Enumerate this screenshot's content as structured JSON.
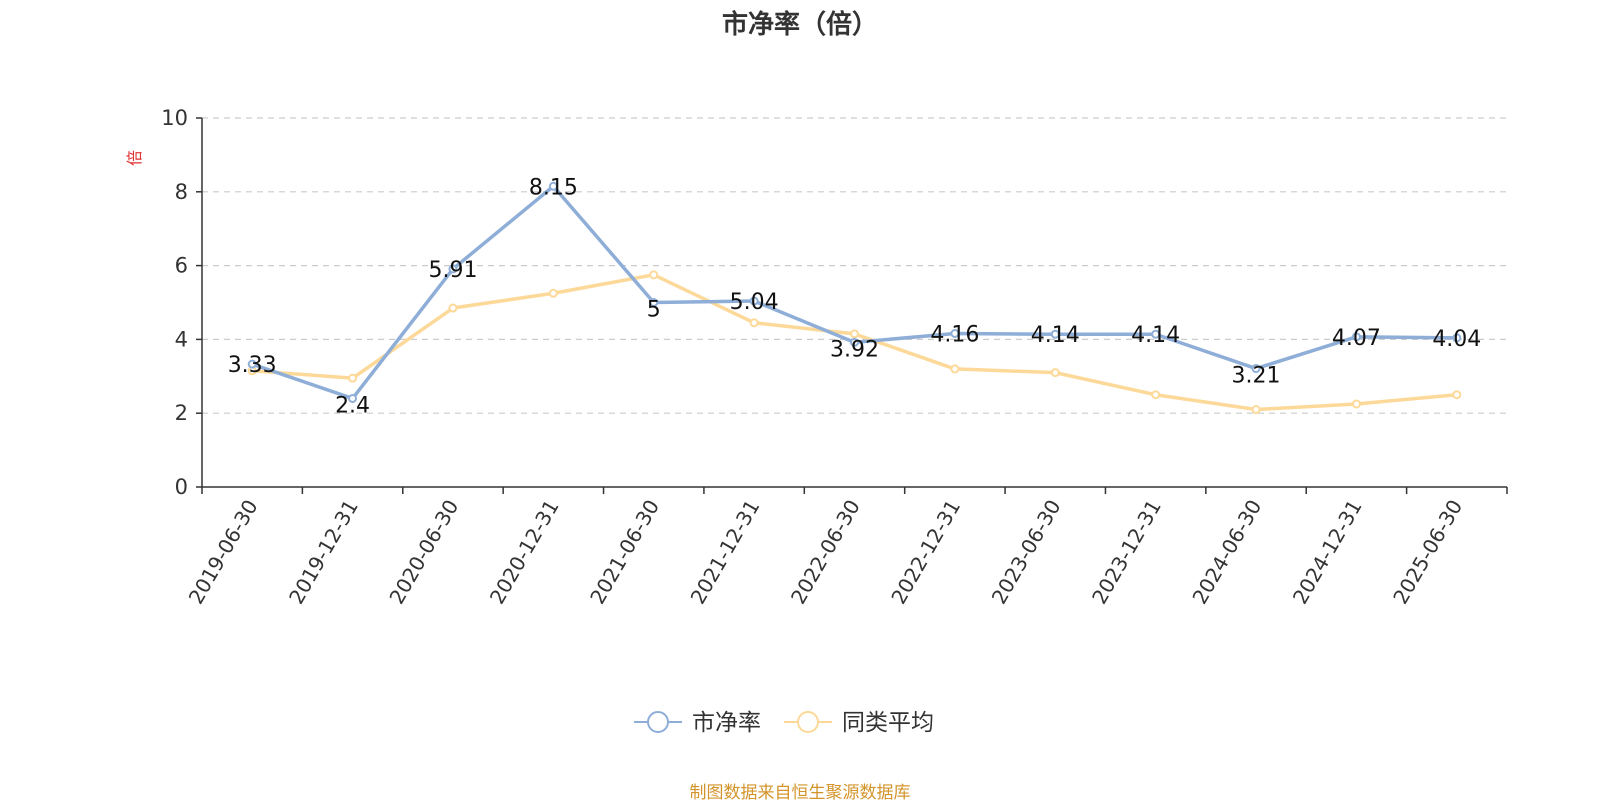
{
  "chart_data": {
    "type": "line",
    "title": "市净率（倍）",
    "ylabel": "倍",
    "ylim": [
      0,
      10
    ],
    "yticks": [
      "0",
      "2",
      "4",
      "6",
      "8",
      "10"
    ],
    "categories": [
      "2019-06-30",
      "2019-12-31",
      "2020-06-30",
      "2020-12-31",
      "2021-06-30",
      "2021-12-31",
      "2022-06-30",
      "2022-12-31",
      "2023-06-30",
      "2023-12-31",
      "2024-06-30",
      "2024-12-31",
      "2025-06-30"
    ],
    "series": [
      {
        "name": "市净率",
        "color": "#8eaed8",
        "values": [
          3.33,
          2.4,
          5.91,
          8.15,
          5,
          5.04,
          3.92,
          4.16,
          4.14,
          4.14,
          3.21,
          4.07,
          4.04
        ],
        "labels": [
          "3.33",
          "2.4",
          "5.91",
          "8.15",
          "5",
          "5.04",
          "3.92",
          "4.16",
          "4.14",
          "4.14",
          "3.21",
          "4.07",
          "4.04"
        ]
      },
      {
        "name": "同类平均",
        "color": "#fdd999",
        "values": [
          3.15,
          2.95,
          4.85,
          5.25,
          5.75,
          4.45,
          4.15,
          3.2,
          3.1,
          2.5,
          2.1,
          2.25,
          2.5
        ]
      }
    ],
    "grid": true,
    "legend": "bottom-center",
    "unit_color": "#e03030",
    "source": "制图数据来自恒生聚源数据库",
    "source_color": "#d4942c"
  }
}
